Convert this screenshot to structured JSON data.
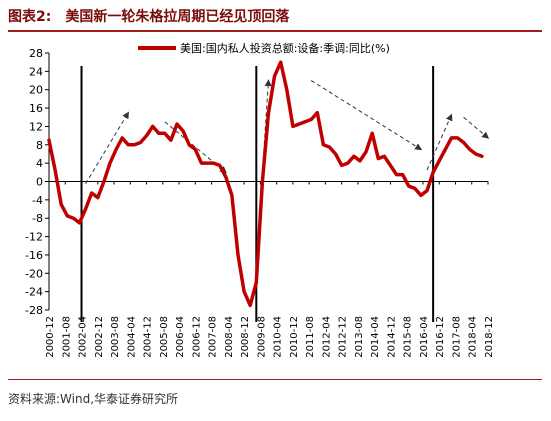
{
  "header": {
    "label": "图表2:",
    "title": "美国新一轮朱格拉周期已经见顶回落"
  },
  "footer": {
    "source": "资料来源:Wind,华泰证券研究所"
  },
  "colors": {
    "series": "#c00000",
    "brand": "#a11b1b",
    "axis": "#000000",
    "arrow": "#333333"
  },
  "chart_data": {
    "type": "line",
    "title": "",
    "xlabel": "",
    "ylabel": "",
    "ylim": [
      -28,
      28
    ],
    "yticks": [
      -28,
      -24,
      -20,
      -16,
      -12,
      -8,
      -4,
      0,
      4,
      8,
      12,
      16,
      20,
      24,
      28
    ],
    "xlim": [
      "2000-12",
      "2018-12"
    ],
    "xticks": [
      "2000-12",
      "2001-08",
      "2002-04",
      "2002-12",
      "2003-08",
      "2004-04",
      "2004-12",
      "2005-08",
      "2006-04",
      "2006-12",
      "2007-08",
      "2008-04",
      "2008-12",
      "2009-08",
      "2010-04",
      "2010-12",
      "2011-08",
      "2012-04",
      "2012-12",
      "2013-08",
      "2014-04",
      "2014-12",
      "2015-08",
      "2016-04",
      "2016-12",
      "2017-08",
      "2018-04",
      "2018-12"
    ],
    "legend": "top",
    "grid": false,
    "series": [
      {
        "name": "美国:国内私人投资总额:设备:季调:同比(%)",
        "color": "#c00000",
        "x": [
          "2000-12",
          "2001-03",
          "2001-06",
          "2001-09",
          "2001-12",
          "2002-03",
          "2002-06",
          "2002-09",
          "2002-12",
          "2003-03",
          "2003-06",
          "2003-09",
          "2003-12",
          "2004-03",
          "2004-06",
          "2004-09",
          "2004-12",
          "2005-03",
          "2005-06",
          "2005-09",
          "2005-12",
          "2006-03",
          "2006-06",
          "2006-09",
          "2006-12",
          "2007-03",
          "2007-06",
          "2007-09",
          "2007-12",
          "2008-03",
          "2008-06",
          "2008-09",
          "2008-12",
          "2009-03",
          "2009-06",
          "2009-09",
          "2009-12",
          "2010-03",
          "2010-06",
          "2010-09",
          "2010-12",
          "2011-03",
          "2011-06",
          "2011-09",
          "2011-12",
          "2012-03",
          "2012-06",
          "2012-09",
          "2012-12",
          "2013-03",
          "2013-06",
          "2013-09",
          "2013-12",
          "2014-03",
          "2014-06",
          "2014-09",
          "2014-12",
          "2015-03",
          "2015-06",
          "2015-09",
          "2015-12",
          "2016-03",
          "2016-06",
          "2016-09",
          "2016-12",
          "2017-03",
          "2017-06",
          "2017-09",
          "2017-12",
          "2018-03",
          "2018-06",
          "2018-09"
        ],
        "values": [
          9,
          2.5,
          -5,
          -7.5,
          -8,
          -9,
          -6,
          -2.5,
          -3.5,
          0,
          4,
          7,
          9.5,
          8,
          8,
          8.5,
          10,
          12,
          10.5,
          10.5,
          9,
          12.5,
          11,
          8,
          7,
          4,
          4,
          4,
          3.5,
          1,
          -3,
          -16,
          -24,
          -27,
          -22,
          0,
          15,
          23,
          26,
          20,
          12,
          12.5,
          13,
          13.5,
          15,
          8,
          7.5,
          6,
          3.5,
          4,
          5.5,
          4.5,
          6.5,
          10.5,
          5,
          5.5,
          3.5,
          1.5,
          1.5,
          -1,
          -1.5,
          -3,
          -2,
          2,
          4.5,
          7,
          9.5,
          9.5,
          8.5,
          7,
          6,
          5.5
        ]
      }
    ],
    "cycle_markers": [
      "2002-04",
      "2009-06",
      "2016-09"
    ],
    "trend_arrows": [
      {
        "from": [
          "2002-06",
          -0.5
        ],
        "to": [
          "2004-03",
          15
        ]
      },
      {
        "from": [
          "2005-09",
          13
        ],
        "to": [
          "2008-03",
          2
        ]
      },
      {
        "from": [
          "2009-09",
          2
        ],
        "to": [
          "2009-12",
          22
        ]
      },
      {
        "from": [
          "2011-09",
          22
        ],
        "to": [
          "2016-03",
          7
        ]
      },
      {
        "from": [
          "2016-06",
          2.5
        ],
        "to": [
          "2017-06",
          14.5
        ]
      },
      {
        "from": [
          "2017-12",
          14
        ],
        "to": [
          "2018-12",
          9.5
        ]
      }
    ]
  }
}
